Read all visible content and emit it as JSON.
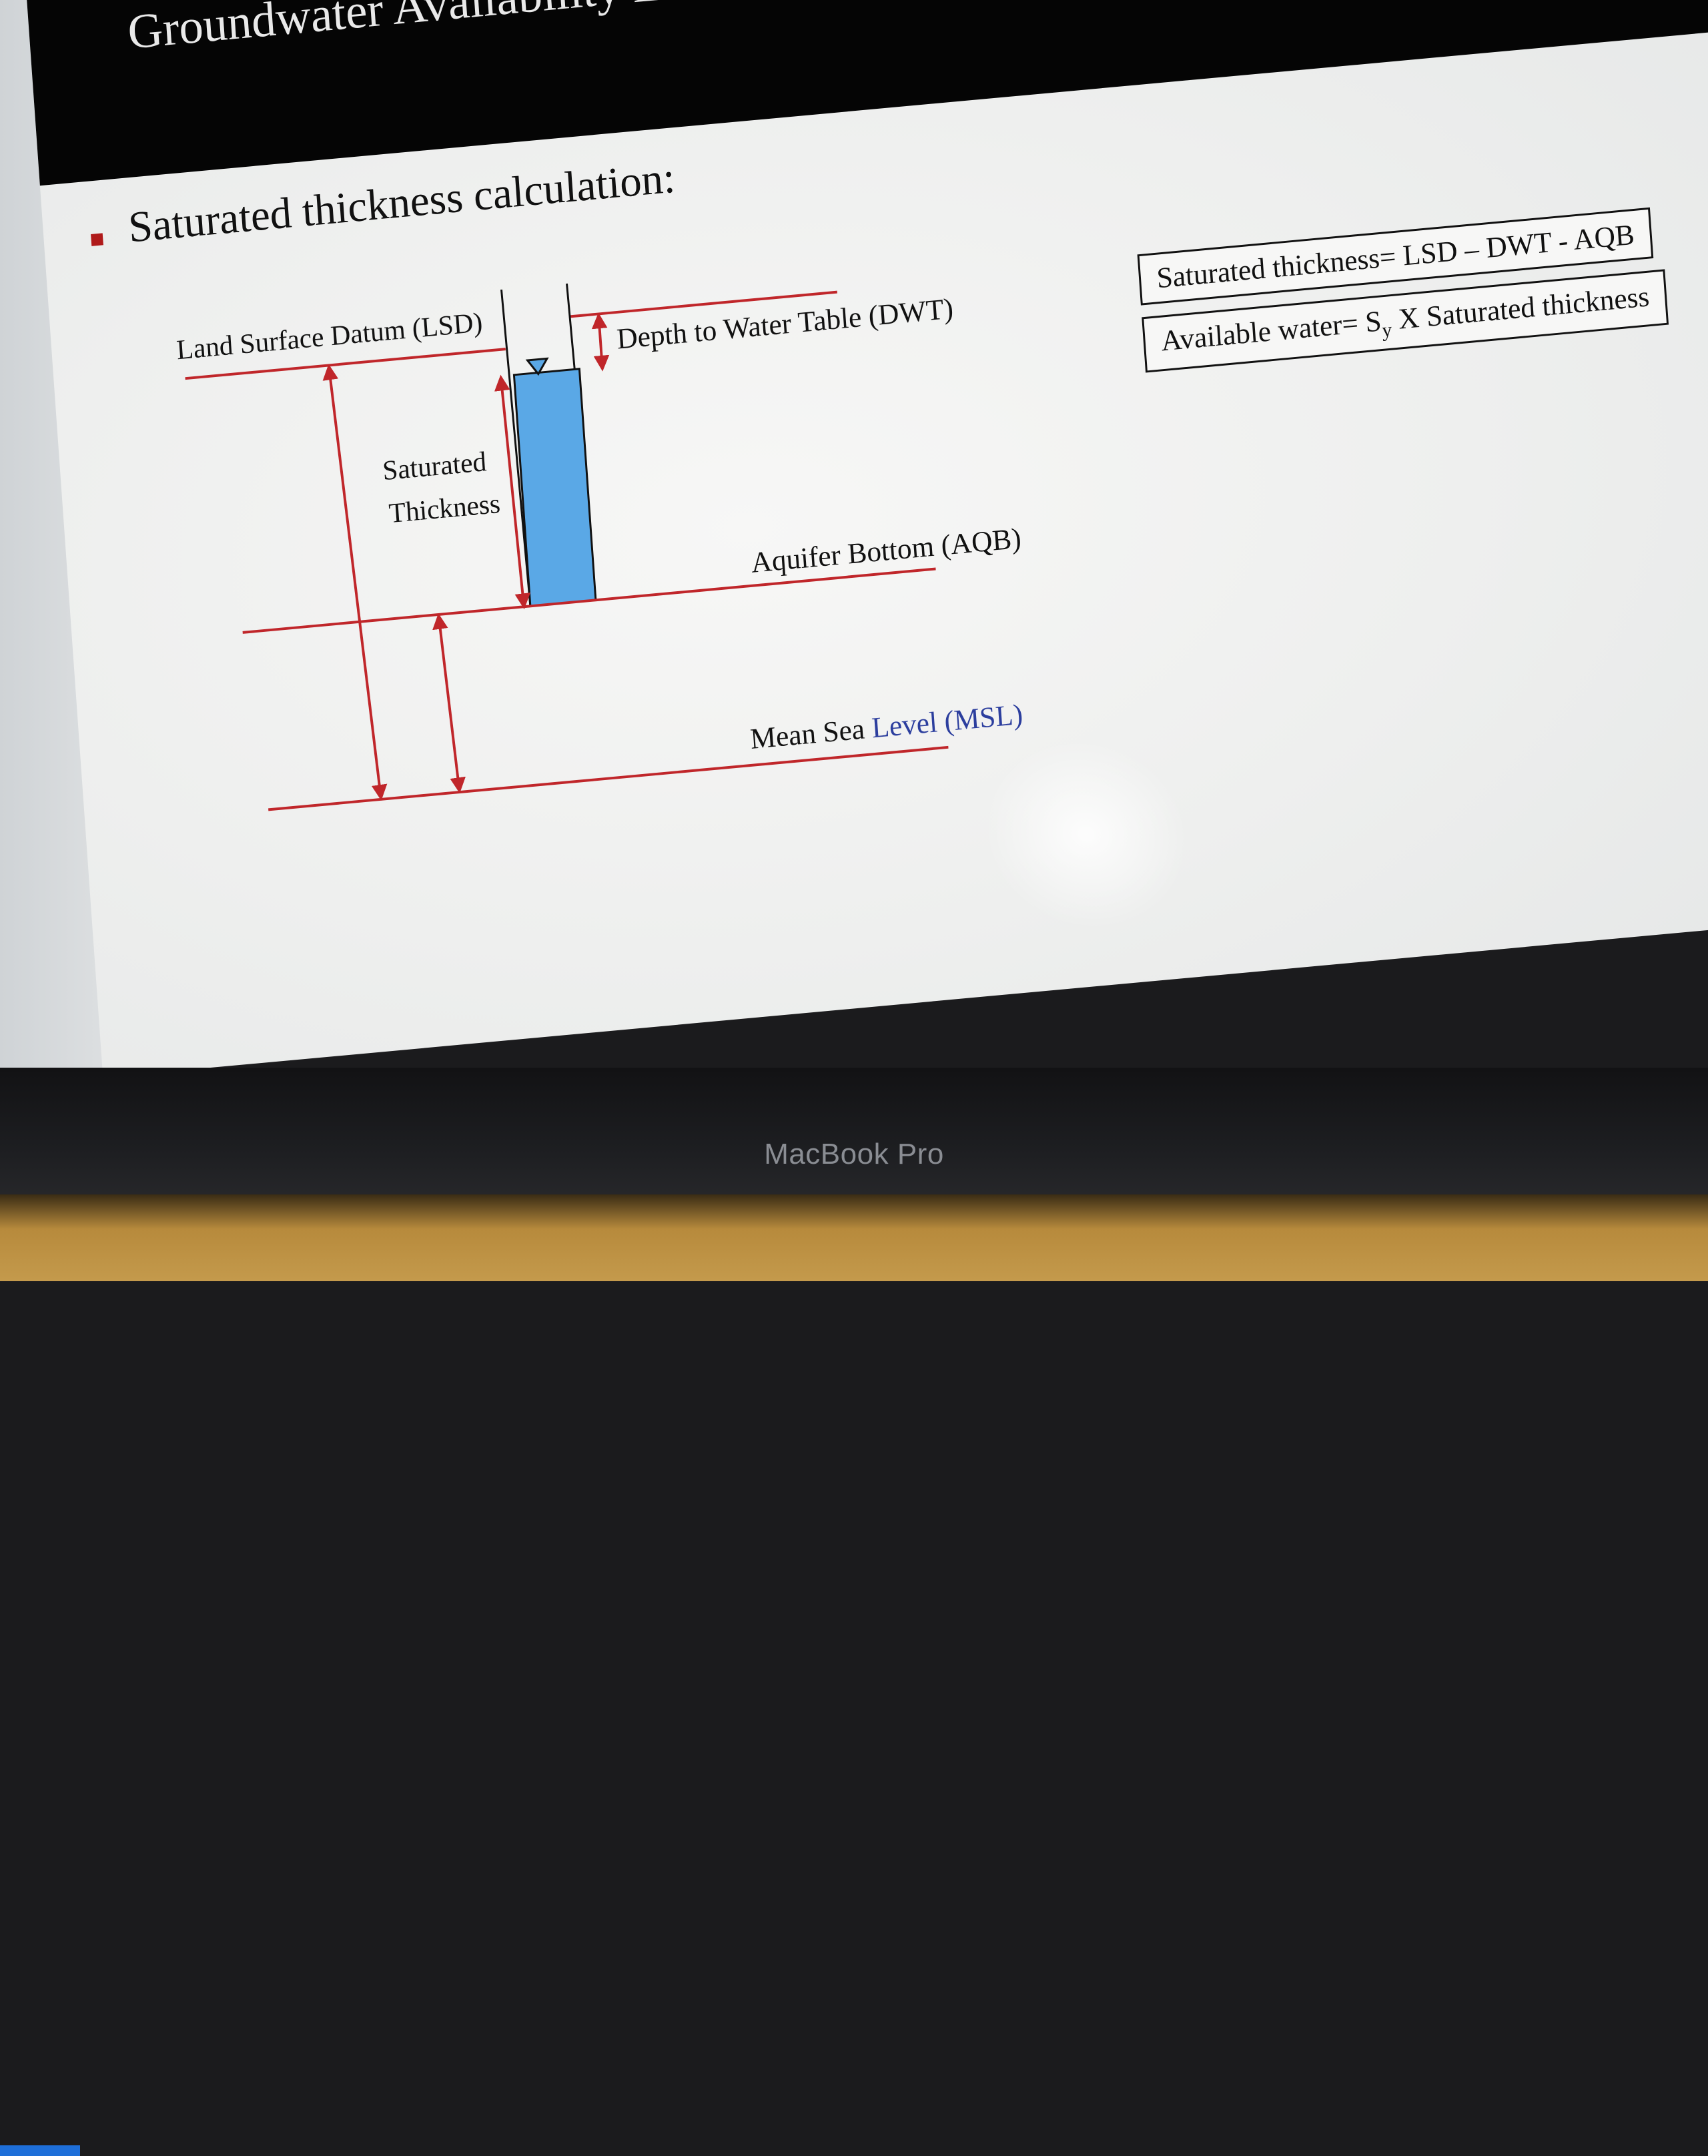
{
  "slide": {
    "title": "Groundwater Availability Estimation: Elements",
    "bullet": "Saturated thickness calculation:"
  },
  "diagram": {
    "lsd": "Land Surface Datum (LSD)",
    "dwt": "Depth to Water Table (DWT)",
    "sat_line1": "Saturated",
    "sat_line2": "Thickness",
    "aqb": "Aquifer Bottom (AQB)",
    "msl_a": "Mean Sea ",
    "msl_b": "Level (MSL)"
  },
  "formulas": {
    "saturated": "Saturated thickness= LSD – DWT - AQB",
    "available_a": "Available water= S",
    "available_sub": "y",
    "available_b": " X Saturated thickness"
  },
  "device": {
    "brand": "MacBook Pro"
  },
  "colors": {
    "line": "#c0262a",
    "water": "#5aa8e6",
    "bullet": "#b01a1a"
  }
}
